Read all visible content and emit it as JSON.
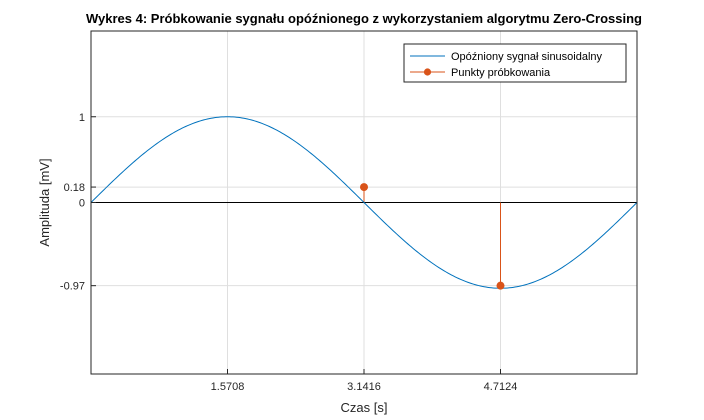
{
  "chart_data": {
    "type": "line",
    "title": "Wykres 4: Próbkowanie sygnału opóźnionego z wykorzystaniem algorytmu Zero-Crossing",
    "xlabel": "Czas [s]",
    "ylabel": "Amplituda [mV]",
    "xlim": [
      0,
      6.2832
    ],
    "ylim": [
      -2,
      2
    ],
    "xticks": [
      1.5708,
      3.1416,
      4.7124
    ],
    "xtick_labels": [
      "1.5708",
      "3.1416",
      "4.7124"
    ],
    "yticks": [
      -0.97,
      0,
      0.18,
      1
    ],
    "ytick_labels": [
      "-0.97",
      "0",
      "0.18",
      "1"
    ],
    "grid": true,
    "legend_position": "top-right",
    "zero_line": true,
    "series": [
      {
        "name": "Opóźniony sygnał sinusoidalny",
        "type": "line",
        "color": "#0072BD",
        "function": "sin(x)",
        "x_range": [
          0,
          6.2832
        ]
      },
      {
        "name": "Punkty próbkowania",
        "type": "stem",
        "color": "#D95319",
        "x": [
          3.1416,
          4.7124
        ],
        "y": [
          0.18,
          -0.97
        ]
      }
    ]
  }
}
